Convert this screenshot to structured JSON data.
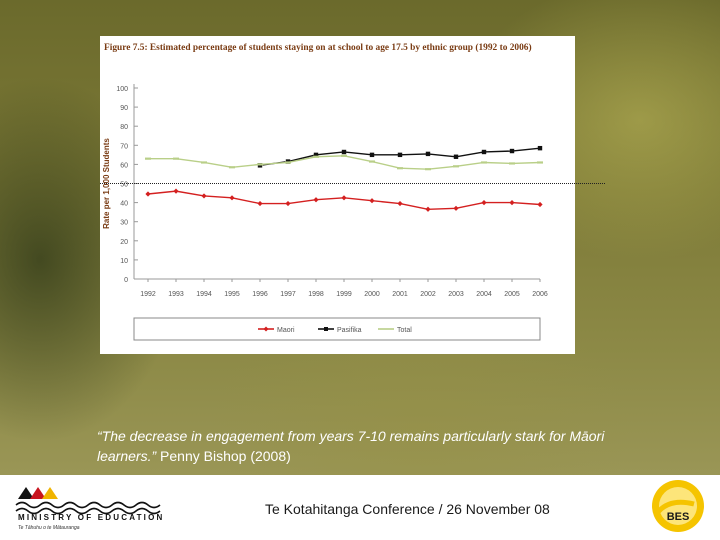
{
  "chart_data": {
    "type": "line",
    "title": "Figure 7.5: Estimated percentage of students staying on at school to age 17.5 by ethnic group (1992 to 2006)",
    "ylabel": "Rate per 1,000 Students",
    "xlabel": "",
    "x": [
      "1992",
      "1993",
      "1994",
      "1995",
      "1996",
      "1997",
      "1998",
      "1999",
      "2000",
      "2001",
      "2002",
      "2003",
      "2004",
      "2005",
      "2006"
    ],
    "ylim": [
      0,
      100
    ],
    "yticks": [
      "0",
      "10",
      "20",
      "30",
      "40",
      "50",
      "60",
      "70",
      "80",
      "90",
      "100"
    ],
    "grid": false,
    "legend_position": "bottom",
    "series": [
      {
        "name": "Maori",
        "color": "#d42020",
        "marker": "diamond",
        "values": [
          44.5,
          46,
          43.5,
          42.5,
          39.5,
          39.5,
          41.5,
          42.5,
          41,
          39.5,
          36.5,
          37,
          40,
          40,
          39
        ]
      },
      {
        "name": "Pasifika",
        "color": "#111111",
        "marker": "square",
        "values": [
          null,
          null,
          null,
          null,
          59.5,
          61.5,
          65,
          66.5,
          65,
          65,
          65.5,
          64,
          66.5,
          67,
          68.5
        ]
      },
      {
        "name": "Total",
        "color": "#b9cf88",
        "marker": "dash",
        "values": [
          63,
          63,
          61,
          58.5,
          60,
          61,
          64,
          64.5,
          61.5,
          58,
          57.5,
          59,
          61,
          60.5,
          61
        ]
      }
    ]
  },
  "quote": {
    "text": "“The decrease in engagement from years 7-10 remains particularly stark for Māori learners.”",
    "author": " Penny Bishop (2008)"
  },
  "footer": {
    "ministry_name": "MINISTRY OF EDUCATION",
    "ministry_subtitle": "Te Tāhuhu o te Mātauranga",
    "conference": "Te Kotahitanga Conference / 26 November 08",
    "bes_label": "BES"
  },
  "colors": {
    "maori": "#d42020",
    "pasifika": "#111111",
    "total": "#b9cf88",
    "logo_yellow": "#f2c200"
  }
}
